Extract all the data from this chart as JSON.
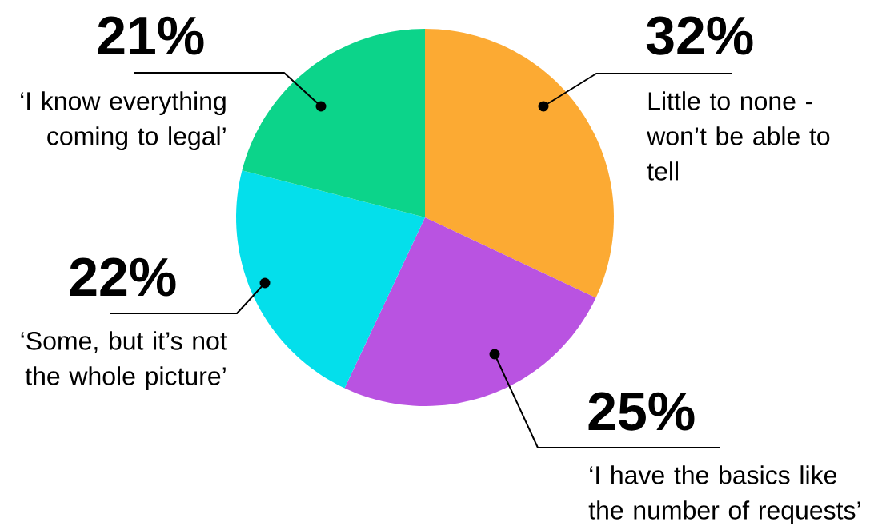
{
  "chart_data": {
    "type": "pie",
    "categories": [
      "Little to none - won’t be able to tell",
      "‘I have the basics like the number of requests’",
      "‘Some, but it’s not the whole picture’",
      "‘I know everything coming to legal’"
    ],
    "values": [
      32,
      25,
      22,
      21
    ],
    "value_labels": [
      "32%",
      "25%",
      "22%",
      "21%"
    ],
    "colors": [
      "#fcaa33",
      "#b953e1",
      "#04dfeb",
      "#0cd48a"
    ]
  }
}
